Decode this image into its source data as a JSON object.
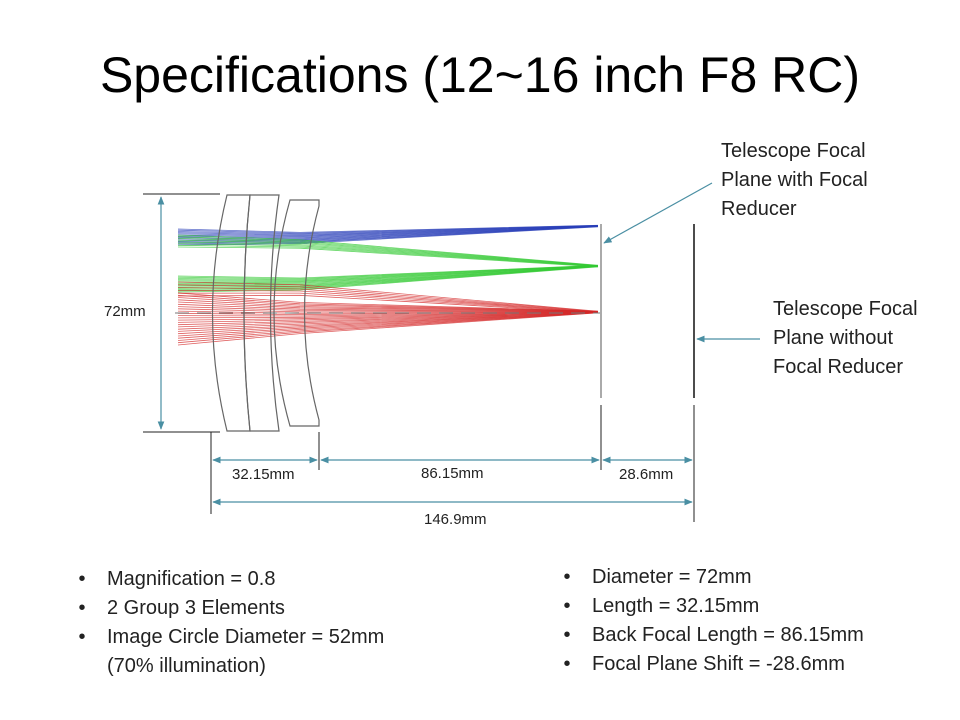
{
  "title": "Specifications (12~16 inch F8 RC)",
  "callouts": {
    "with_reducer": [
      "Telescope Focal",
      "Plane with Focal",
      "Reducer"
    ],
    "without_reducer": [
      "Telescope Focal",
      "Plane without",
      "Focal Reducer"
    ]
  },
  "dimensions": {
    "diameter": "72mm",
    "reducer_length": "32.15mm",
    "back_focal": "86.15mm",
    "shift": "28.6mm",
    "total": "146.9mm"
  },
  "specs_left": [
    {
      "text": "Magnification = 0.8"
    },
    {
      "text": "2 Group 3 Elements"
    },
    {
      "text": "Image Circle Diameter = 52mm",
      "cont": "(70% illumination)"
    }
  ],
  "specs_right": [
    {
      "text": "Diameter = 72mm"
    },
    {
      "text": "Length = 32.15mm"
    },
    {
      "text": "Back Focal Length = 86.15mm"
    },
    {
      "text": "Focal Plane Shift = -28.6mm"
    }
  ],
  "bullet_glyph": "•",
  "colors": {
    "blue_rays": "#2a3fb8",
    "green_rays": "#34c934",
    "red_rays": "#d42a2a",
    "dimension_lines": "#4a8fa3",
    "lens_outline": "#666666"
  }
}
